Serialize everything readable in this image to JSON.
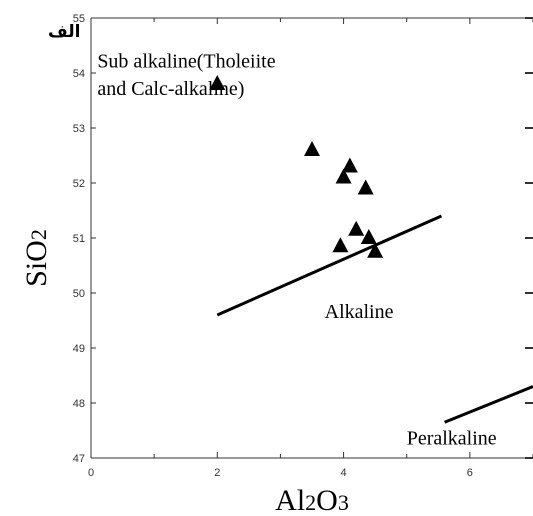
{
  "figure_label": "الف",
  "chart_data": {
    "type": "scatter",
    "xlabel": "Al2O3",
    "ylabel": "SiO2",
    "xlim": [
      0,
      7
    ],
    "ylim": [
      47,
      55
    ],
    "x_ticks": [
      "0",
      "2",
      "4",
      "6"
    ],
    "x_tick_values": [
      0,
      2,
      4,
      6
    ],
    "y_ticks": [
      "47",
      "48",
      "49",
      "50",
      "51",
      "52",
      "53",
      "54",
      "55"
    ],
    "y_tick_values": [
      47,
      48,
      49,
      50,
      51,
      52,
      53,
      54,
      55
    ],
    "grid": false,
    "marker": "filled-triangle",
    "points": [
      {
        "x": 2.0,
        "y": 53.8
      },
      {
        "x": 3.5,
        "y": 52.6
      },
      {
        "x": 4.1,
        "y": 52.3
      },
      {
        "x": 4.0,
        "y": 52.1
      },
      {
        "x": 4.35,
        "y": 51.9
      },
      {
        "x": 4.2,
        "y": 51.15
      },
      {
        "x": 4.4,
        "y": 51.0
      },
      {
        "x": 3.95,
        "y": 50.85
      },
      {
        "x": 4.5,
        "y": 50.75
      }
    ],
    "boundary_lines": [
      {
        "from": [
          2.0,
          49.6
        ],
        "to": [
          5.55,
          51.4
        ]
      },
      {
        "from": [
          5.6,
          47.65
        ],
        "to": [
          7.0,
          48.3
        ]
      }
    ],
    "region_labels": [
      {
        "text": "Sub alkaline(Tholeiite",
        "anchor": [
          0.1,
          54.1
        ]
      },
      {
        "text": "and Calc-alkaline)",
        "anchor": [
          0.1,
          53.6
        ]
      },
      {
        "text": "Alkaline",
        "anchor": [
          3.7,
          49.55
        ]
      },
      {
        "text": "Peralkaline",
        "anchor": [
          5.0,
          47.25
        ]
      }
    ],
    "colors": {
      "marker": "#000000",
      "line": "#000000",
      "axis": "#333333"
    }
  }
}
